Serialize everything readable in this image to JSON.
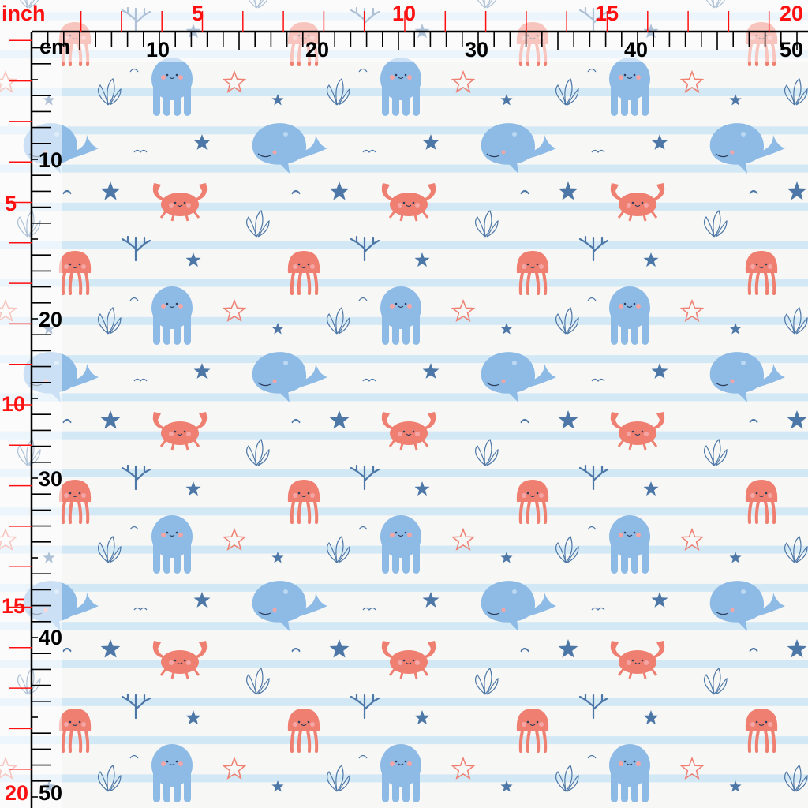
{
  "fabric": {
    "background": "#f7f7f6",
    "stripe_color": "#d3e8f5",
    "motifs": [
      "octopus",
      "whale",
      "crab",
      "jellyfish",
      "starfish",
      "seaweed",
      "coral",
      "wave-arc"
    ],
    "colors": {
      "blue": "#8dbbe6",
      "red": "#ef7f70",
      "navy": "#4d77a6"
    }
  },
  "ruler": {
    "inch_unit": "inch",
    "cm_unit": "cm",
    "inch_color": "#ff1010",
    "cm_color": "#000000",
    "top_inch_labels": [
      "5",
      "10",
      "15",
      "20"
    ],
    "top_cm_labels": [
      "10",
      "20",
      "30",
      "40",
      "50"
    ],
    "left_inch_labels": [
      "5",
      "10",
      "15",
      "20"
    ],
    "left_cm_labels": [
      "10",
      "20",
      "30",
      "40",
      "50"
    ]
  }
}
